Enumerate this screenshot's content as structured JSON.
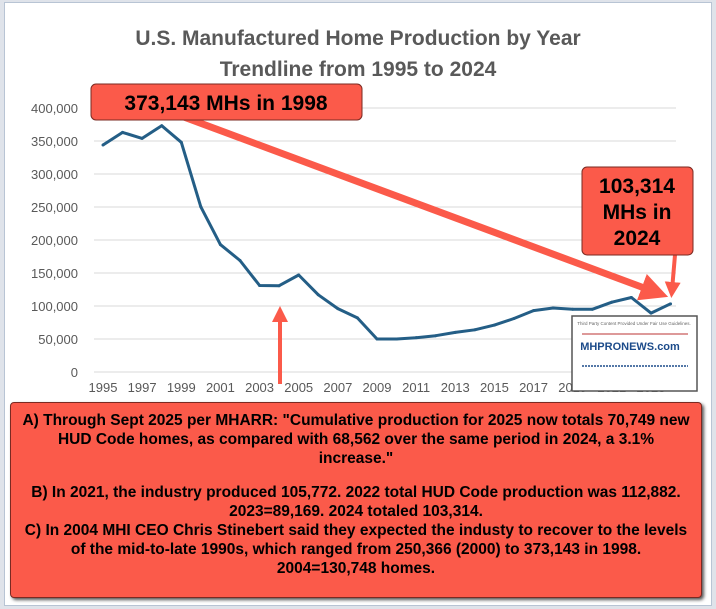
{
  "chart_data": {
    "type": "line",
    "title": "U.S. Manufactured Home Production by Year",
    "subtitle": "Trendline from 1995 to 2024",
    "xlabel": "",
    "ylabel": "",
    "ylim": [
      0,
      400000
    ],
    "y_ticks": [
      "400,000",
      "350,000",
      "300,000",
      "250,000",
      "200,000",
      "150,000",
      "100,000",
      "50,000",
      "0"
    ],
    "x_ticks": [
      "1995",
      "1997",
      "1999",
      "2001",
      "2003",
      "2005",
      "2007",
      "2009",
      "2011",
      "2013",
      "2015",
      "2017",
      "2019",
      "2021",
      "2023"
    ],
    "grid": true,
    "line_color": "#245e86",
    "x": [
      1995,
      1996,
      1997,
      1998,
      1999,
      2000,
      2001,
      2002,
      2003,
      2004,
      2005,
      2006,
      2007,
      2008,
      2009,
      2010,
      2011,
      2012,
      2013,
      2014,
      2015,
      2016,
      2017,
      2018,
      2019,
      2020,
      2021,
      2022,
      2023,
      2024
    ],
    "values": [
      344000,
      363000,
      354000,
      373143,
      348000,
      250366,
      193000,
      169000,
      131000,
      130748,
      147000,
      117000,
      96000,
      82000,
      50000,
      50000,
      52000,
      55000,
      60000,
      64000,
      71000,
      81000,
      93000,
      97000,
      95000,
      95000,
      105772,
      112882,
      89169,
      103314
    ],
    "annotations": {
      "peak": "373,143 MHs in 1998",
      "latest_line1": "103,314",
      "latest_line2": "MHs in",
      "latest_line3": "2024"
    }
  },
  "watermark": {
    "text": "MHPRONEWS.com",
    "caption": "Third Party Content Provided Under Fair Use Guidelines."
  },
  "notes": {
    "a": "A) Through Sept 2025 per MHARR: \"Cumulative production for 2025 now totals 70,749 new HUD Code homes, as compared with 68,562 over the same period in 2024, a 3.1% increase.\"",
    "b": "B) In 2021, the industry produced 105,772. 2022 total HUD Code production was 112,882. 2023=89,169. 2024 totaled 103,314.",
    "c": "C) In 2004 MHI CEO Chris Stinebert said they expected the industy to recover to the levels of the mid-to-late 1990s, which ranged from 250,366 (2000) to 373,143 in 1998. 2004=130,748 homes."
  },
  "colors": {
    "callout": "#fb5a4a",
    "line": "#245e86",
    "grid": "#d9d9d9"
  }
}
